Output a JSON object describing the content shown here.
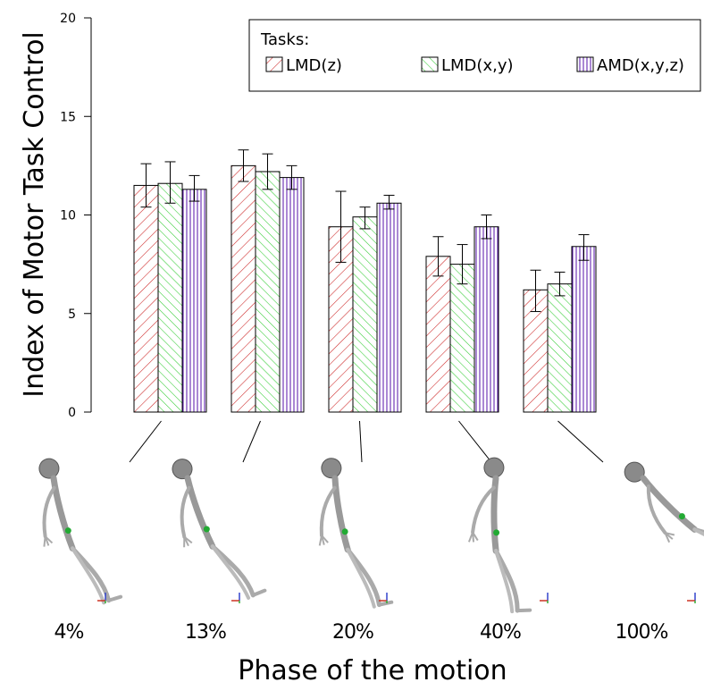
{
  "chart_data": {
    "type": "bar",
    "ylabel": "Index of Motor Task Control",
    "xlabel": "Phase of the motion",
    "ylim": [
      0,
      20
    ],
    "yticks": [
      0,
      5,
      10,
      15,
      20
    ],
    "grid": false,
    "legend_title": "Tasks:",
    "legend_position": "top-right",
    "categories": [
      "4%",
      "13%",
      "20%",
      "40%",
      "100%"
    ],
    "series": [
      {
        "name": "LMD(z)",
        "color": "#cc2222",
        "pattern": "diagonal-right",
        "values": [
          11.5,
          12.5,
          9.4,
          7.9,
          6.2
        ],
        "err_low": [
          10.4,
          11.7,
          7.6,
          6.9,
          5.1
        ],
        "err_high": [
          12.6,
          13.3,
          11.2,
          8.9,
          7.2
        ]
      },
      {
        "name": "LMD(x,y)",
        "color": "#33cc33",
        "pattern": "diagonal-left",
        "values": [
          11.6,
          12.2,
          9.9,
          7.5,
          6.5
        ],
        "err_low": [
          10.6,
          11.3,
          9.3,
          6.5,
          5.9
        ],
        "err_high": [
          12.7,
          13.1,
          10.4,
          8.5,
          7.1
        ]
      },
      {
        "name": "AMD(x,y,z)",
        "color": "#5511aa",
        "pattern": "vertical",
        "values": [
          11.3,
          11.9,
          10.6,
          9.4,
          8.4
        ],
        "err_low": [
          10.7,
          11.3,
          10.3,
          8.8,
          7.7
        ],
        "err_high": [
          12.0,
          12.5,
          11.0,
          10.0,
          9.0
        ]
      }
    ]
  },
  "illustration": {
    "figure_icon": "skeleton-figure",
    "axis_icon": "coordinate-axes"
  }
}
